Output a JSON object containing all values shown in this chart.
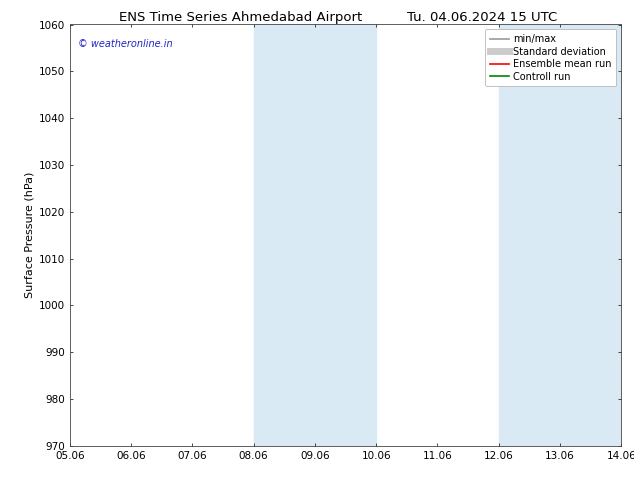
{
  "title_left": "ENS Time Series Ahmedabad Airport",
  "title_right": "Tu. 04.06.2024 15 UTC",
  "ylabel": "Surface Pressure (hPa)",
  "ylim": [
    970,
    1060
  ],
  "yticks": [
    970,
    980,
    990,
    1000,
    1010,
    1020,
    1030,
    1040,
    1050,
    1060
  ],
  "xlim_start": 0,
  "xlim_end": 9,
  "xtick_labels": [
    "05.06",
    "06.06",
    "07.06",
    "08.06",
    "09.06",
    "10.06",
    "11.06",
    "12.06",
    "13.06",
    "14.06"
  ],
  "shade_bands": [
    {
      "xmin": 3,
      "xmax": 5,
      "color": "#daeaf5"
    },
    {
      "xmin": 7,
      "xmax": 9,
      "color": "#daeaf5"
    }
  ],
  "watermark": "© weatheronline.in",
  "watermark_color": "#2222cc",
  "legend_items": [
    {
      "label": "min/max",
      "color": "#999999",
      "lw": 1.2,
      "style": "-"
    },
    {
      "label": "Standard deviation",
      "color": "#cccccc",
      "lw": 5,
      "style": "-"
    },
    {
      "label": "Ensemble mean run",
      "color": "#ff0000",
      "lw": 1.2,
      "style": "-"
    },
    {
      "label": "Controll run",
      "color": "#008800",
      "lw": 1.2,
      "style": "-"
    }
  ],
  "bg_color": "#ffffff",
  "title_fontsize": 9.5,
  "ylabel_fontsize": 8,
  "tick_fontsize": 7.5,
  "watermark_fontsize": 7,
  "legend_fontsize": 7
}
